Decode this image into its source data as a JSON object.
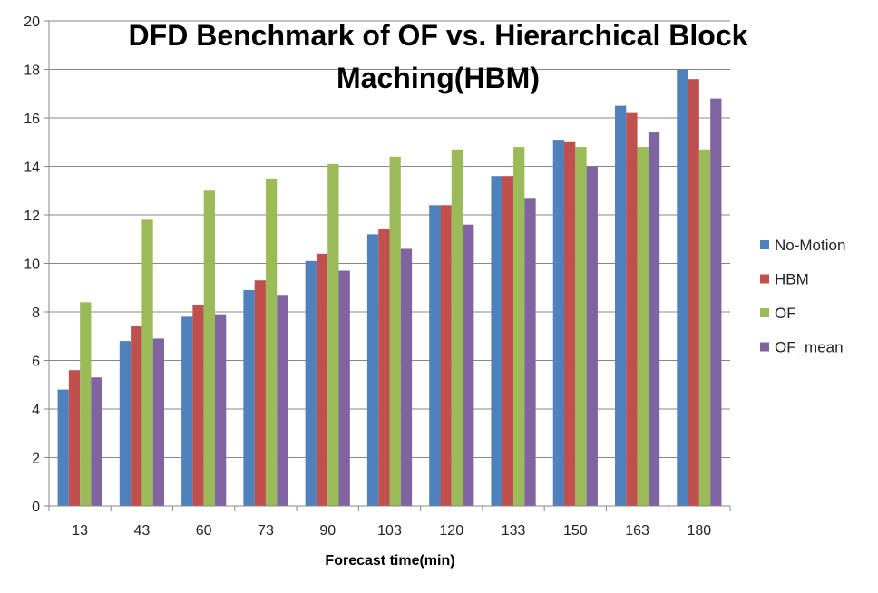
{
  "chart_data": {
    "type": "bar",
    "title_line1": "DFD Benchmark of OF vs. Hierarchical Block",
    "title_line2": "Maching(HBM)",
    "xlabel": "Forecast time(min)",
    "ylabel": "",
    "ylim": [
      0,
      20
    ],
    "ytick_step": 2,
    "grid": true,
    "legend_position": "right",
    "categories": [
      "13",
      "43",
      "60",
      "73",
      "90",
      "103",
      "120",
      "133",
      "150",
      "163",
      "180"
    ],
    "series": [
      {
        "name": "No-Motion",
        "color": "#4F81BD",
        "values": [
          4.8,
          6.8,
          7.8,
          8.9,
          10.1,
          11.2,
          12.4,
          13.6,
          15.1,
          16.5,
          18.0
        ]
      },
      {
        "name": "HBM",
        "color": "#C0504D",
        "values": [
          5.6,
          7.4,
          8.3,
          9.3,
          10.4,
          11.4,
          12.4,
          13.6,
          15.0,
          16.2,
          17.6
        ]
      },
      {
        "name": "OF",
        "color": "#9BBB59",
        "values": [
          8.4,
          11.8,
          13.0,
          13.5,
          14.1,
          14.4,
          14.7,
          14.8,
          14.8,
          14.8,
          14.7
        ]
      },
      {
        "name": "OF_mean",
        "color": "#8064A2",
        "values": [
          5.3,
          6.9,
          7.9,
          8.7,
          9.7,
          10.6,
          11.6,
          12.7,
          14.0,
          15.4,
          16.8
        ]
      }
    ]
  }
}
